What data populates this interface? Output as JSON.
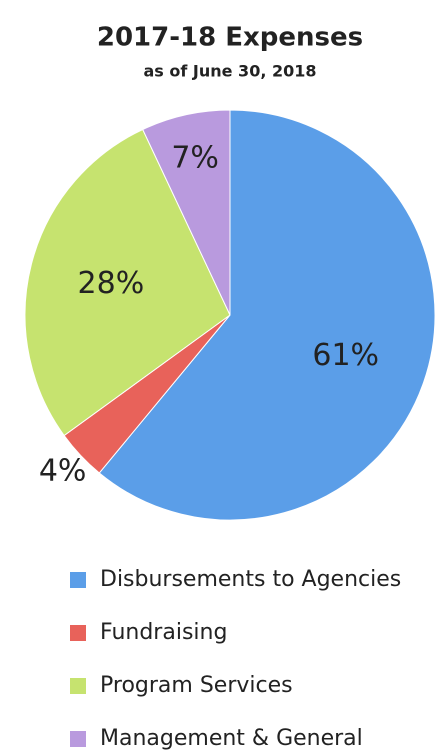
{
  "chart_data": {
    "type": "pie",
    "title": "2017-18 Expenses",
    "subtitle": "as of June 30, 2018",
    "categories": [
      "Disbursements to Agencies",
      "Fundraising",
      "Program Services",
      "Management & General"
    ],
    "values": [
      61,
      4,
      28,
      7
    ],
    "value_labels": [
      "61%",
      "4%",
      "28%",
      "7%"
    ],
    "colors": [
      "#5b9ee8",
      "#e8625a",
      "#c6e36f",
      "#b99ade"
    ],
    "legend": "bottom"
  }
}
